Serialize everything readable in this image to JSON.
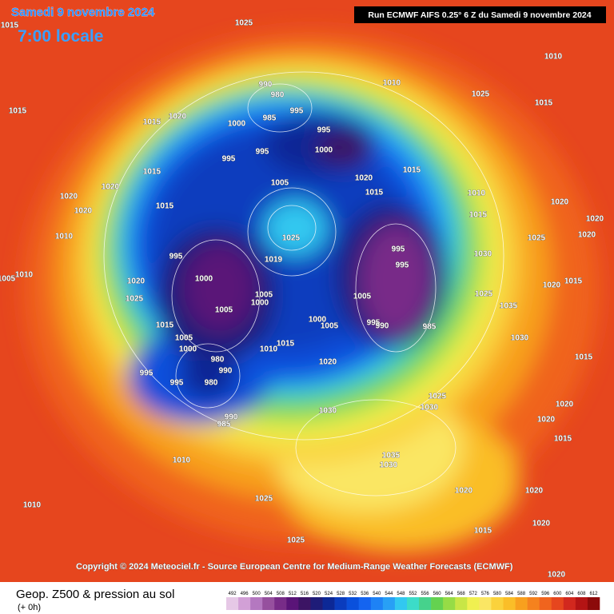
{
  "header": {
    "date": "Samedi 9 novembre 2024",
    "local_time": "7:00 locale",
    "run": "Run ECMWF AIFS 0.25° 6 Z du Samedi 9 novembre 2024"
  },
  "copyright": "Copyright © 2024 Meteociel.fr - Source European Centre for Medium-Range Weather Forecasts (ECMWF)",
  "footer": {
    "title": "Geop. Z500 & pression au sol",
    "lead": "(+ 0h)"
  },
  "isobar_labels": [
    "1015",
    "1025",
    "1010",
    "1025",
    "1015",
    "990",
    "980",
    "995",
    "985",
    "1000",
    "1010",
    "1015",
    "1015",
    "1020",
    "995",
    "1000",
    "995",
    "995",
    "1005",
    "1020",
    "1015",
    "1015",
    "1010",
    "1015",
    "1020",
    "1020",
    "1015",
    "1020",
    "1020",
    "1020",
    "1015",
    "1025",
    "1010",
    "995",
    "995",
    "1030",
    "1025",
    "1020",
    "995",
    "1000",
    "1019",
    "1005",
    "1000",
    "1005",
    "1005",
    "995",
    "990",
    "985",
    "1000",
    "1005",
    "1010",
    "1015",
    "1020",
    "1035",
    "1030",
    "1025",
    "1020",
    "1015",
    "1020",
    "1025",
    "1015",
    "1005",
    "1000",
    "980",
    "990",
    "995",
    "995",
    "980",
    "990",
    "985",
    "1025",
    "1030",
    "1030",
    "1035",
    "1030",
    "1010",
    "1010",
    "1025",
    "1020",
    "1020",
    "1015",
    "1020",
    "1025",
    "1020",
    "1015",
    "1020",
    "1020",
    "1015",
    "1005",
    "1010"
  ],
  "colorbar": {
    "values": [
      492,
      496,
      500,
      504,
      508,
      512,
      516,
      520,
      524,
      528,
      532,
      536,
      540,
      544,
      548,
      552,
      556,
      560,
      564,
      568,
      572,
      576,
      580,
      584,
      588,
      592,
      596,
      600,
      604,
      608,
      612
    ],
    "colors": [
      "#e6c8e6",
      "#d2a0d6",
      "#b478c0",
      "#96509e",
      "#782c88",
      "#5a1478",
      "#3c1464",
      "#1e1c78",
      "#0c2896",
      "#0a3cbe",
      "#0a50dc",
      "#1464f0",
      "#1e82f5",
      "#28a0f5",
      "#32c8f0",
      "#3cdcc8",
      "#46d28c",
      "#64d250",
      "#96dc46",
      "#c8e646",
      "#f0f050",
      "#fae664",
      "#fad23c",
      "#fabe28",
      "#f8a01e",
      "#f5821e",
      "#f0641e",
      "#e6461e",
      "#d2281e",
      "#b41414",
      "#8c0a0a"
    ]
  }
}
